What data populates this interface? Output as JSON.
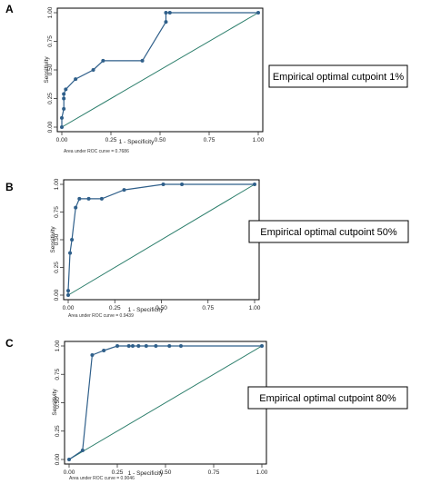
{
  "colors": {
    "roc": "#2f5f8a",
    "reference": "#2a7d6a",
    "axis": "#333333",
    "frame": "#000000"
  },
  "chart_data": [
    {
      "type": "line",
      "panel_label": "A",
      "xlabel": "1 - Specificity",
      "ylabel": "Sensitivity",
      "xlim": [
        0,
        1
      ],
      "ylim": [
        0,
        1
      ],
      "x_ticks": [
        "0.00",
        "0.25",
        "0.50",
        "0.75",
        "1.00"
      ],
      "y_ticks": [
        "0.00",
        "0.25",
        "0.50",
        "0.75",
        "1.00"
      ],
      "auc_text": "Area under ROC curve = 0.7686",
      "cutpoint_text": "Empirical optimal cutpoint 1%",
      "reference_line": [
        [
          0,
          0
        ],
        [
          1,
          1
        ]
      ],
      "grid": false,
      "x": [
        0,
        0,
        0.01,
        0.01,
        0.01,
        0.02,
        0.07,
        0.16,
        0.21,
        0.41,
        0.53,
        0.53,
        0.55,
        1
      ],
      "y": [
        0,
        0.08,
        0.16,
        0.25,
        0.29,
        0.33,
        0.42,
        0.5,
        0.58,
        0.58,
        0.92,
        1,
        1,
        1
      ]
    },
    {
      "type": "line",
      "panel_label": "B",
      "xlabel": "1 - Specificity",
      "ylabel": "Sensitivity",
      "xlim": [
        0,
        1
      ],
      "ylim": [
        0,
        1
      ],
      "x_ticks": [
        "0.00",
        "0.25",
        "0.50",
        "0.75",
        "1.00"
      ],
      "y_ticks": [
        "0.00",
        "0.25",
        "0.50",
        "0.75",
        "1.00"
      ],
      "auc_text": "Area under ROC curve = 0.9439",
      "cutpoint_text": "Empirical optimal cutpoint 50%",
      "reference_line": [
        [
          0,
          0
        ],
        [
          1,
          1
        ]
      ],
      "grid": false,
      "x": [
        0,
        0,
        0.01,
        0.02,
        0.04,
        0.06,
        0.11,
        0.18,
        0.3,
        0.51,
        0.61,
        1
      ],
      "y": [
        0,
        0.04,
        0.38,
        0.5,
        0.79,
        0.87,
        0.87,
        0.87,
        0.95,
        1,
        1,
        1
      ]
    },
    {
      "type": "line",
      "panel_label": "C",
      "xlabel": "1 - Specificity",
      "ylabel": "Sensitivity",
      "xlim": [
        0,
        1
      ],
      "ylim": [
        0,
        1
      ],
      "x_ticks": [
        "0.00",
        "0.25",
        "0.50",
        "0.75",
        "1.00"
      ],
      "y_ticks": [
        "0.00",
        "0.25",
        "0.50",
        "0.75",
        "1.00"
      ],
      "auc_text": "Area under ROC curve = 0.9046",
      "cutpoint_text": "Empirical optimal cutpoint 80%",
      "reference_line": [
        [
          0,
          0
        ],
        [
          1,
          1
        ]
      ],
      "grid": false,
      "x": [
        0,
        0.07,
        0.12,
        0.18,
        0.25,
        0.31,
        0.33,
        0.36,
        0.4,
        0.45,
        0.52,
        0.58,
        1
      ],
      "y": [
        0,
        0.08,
        0.92,
        0.96,
        1,
        1,
        1,
        1,
        1,
        1,
        1,
        1,
        1
      ]
    }
  ]
}
